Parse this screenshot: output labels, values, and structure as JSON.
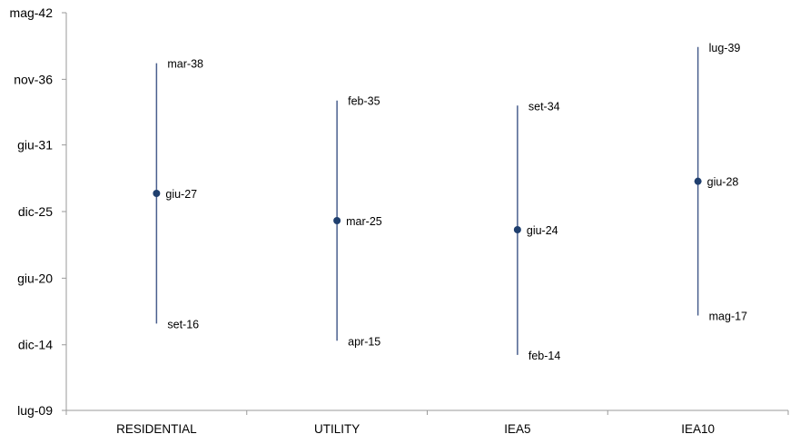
{
  "chart_data": {
    "type": "range",
    "title": "",
    "xlabel": "",
    "ylabel": "",
    "y_axis_kind": "month-year",
    "ylim": [
      "2009-07",
      "2042-05"
    ],
    "y_tick_labels": [
      {
        "date": "2009-07",
        "label": "lug-09"
      },
      {
        "date": "2014-12",
        "label": "dic-14"
      },
      {
        "date": "2020-06",
        "label": "giu-20"
      },
      {
        "date": "2025-12",
        "label": "dic-25"
      },
      {
        "date": "2031-06",
        "label": "giu-31"
      },
      {
        "date": "2036-11",
        "label": "nov-36"
      },
      {
        "date": "2042-05",
        "label": "mag-42"
      }
    ],
    "categories": [
      "RESIDENTIAL",
      "UTILITY",
      "IEA5",
      "IEA10"
    ],
    "series": [
      {
        "values": [
          {
            "low": "2016-09",
            "low_label": "set-16",
            "mid": "2027-06",
            "mid_label": "giu-27",
            "high": "2038-03",
            "high_label": "mar-38"
          },
          {
            "low": "2015-04",
            "low_label": "apr-15",
            "mid": "2025-03",
            "mid_label": "mar-25",
            "high": "2035-02",
            "high_label": "feb-35"
          },
          {
            "low": "2014-02",
            "low_label": "feb-14",
            "mid": "2024-06",
            "mid_label": "giu-24",
            "high": "2034-09",
            "high_label": "set-34"
          },
          {
            "low": "2017-05",
            "low_label": "mag-17",
            "mid": "2028-06",
            "mid_label": "giu-28",
            "high": "2039-07",
            "high_label": "lug-39"
          }
        ]
      }
    ],
    "colors": {
      "line": "#4a5f8e",
      "marker": "#1f3f6e",
      "axis": "#9a9a9a"
    },
    "grid": false,
    "legend": "none"
  }
}
